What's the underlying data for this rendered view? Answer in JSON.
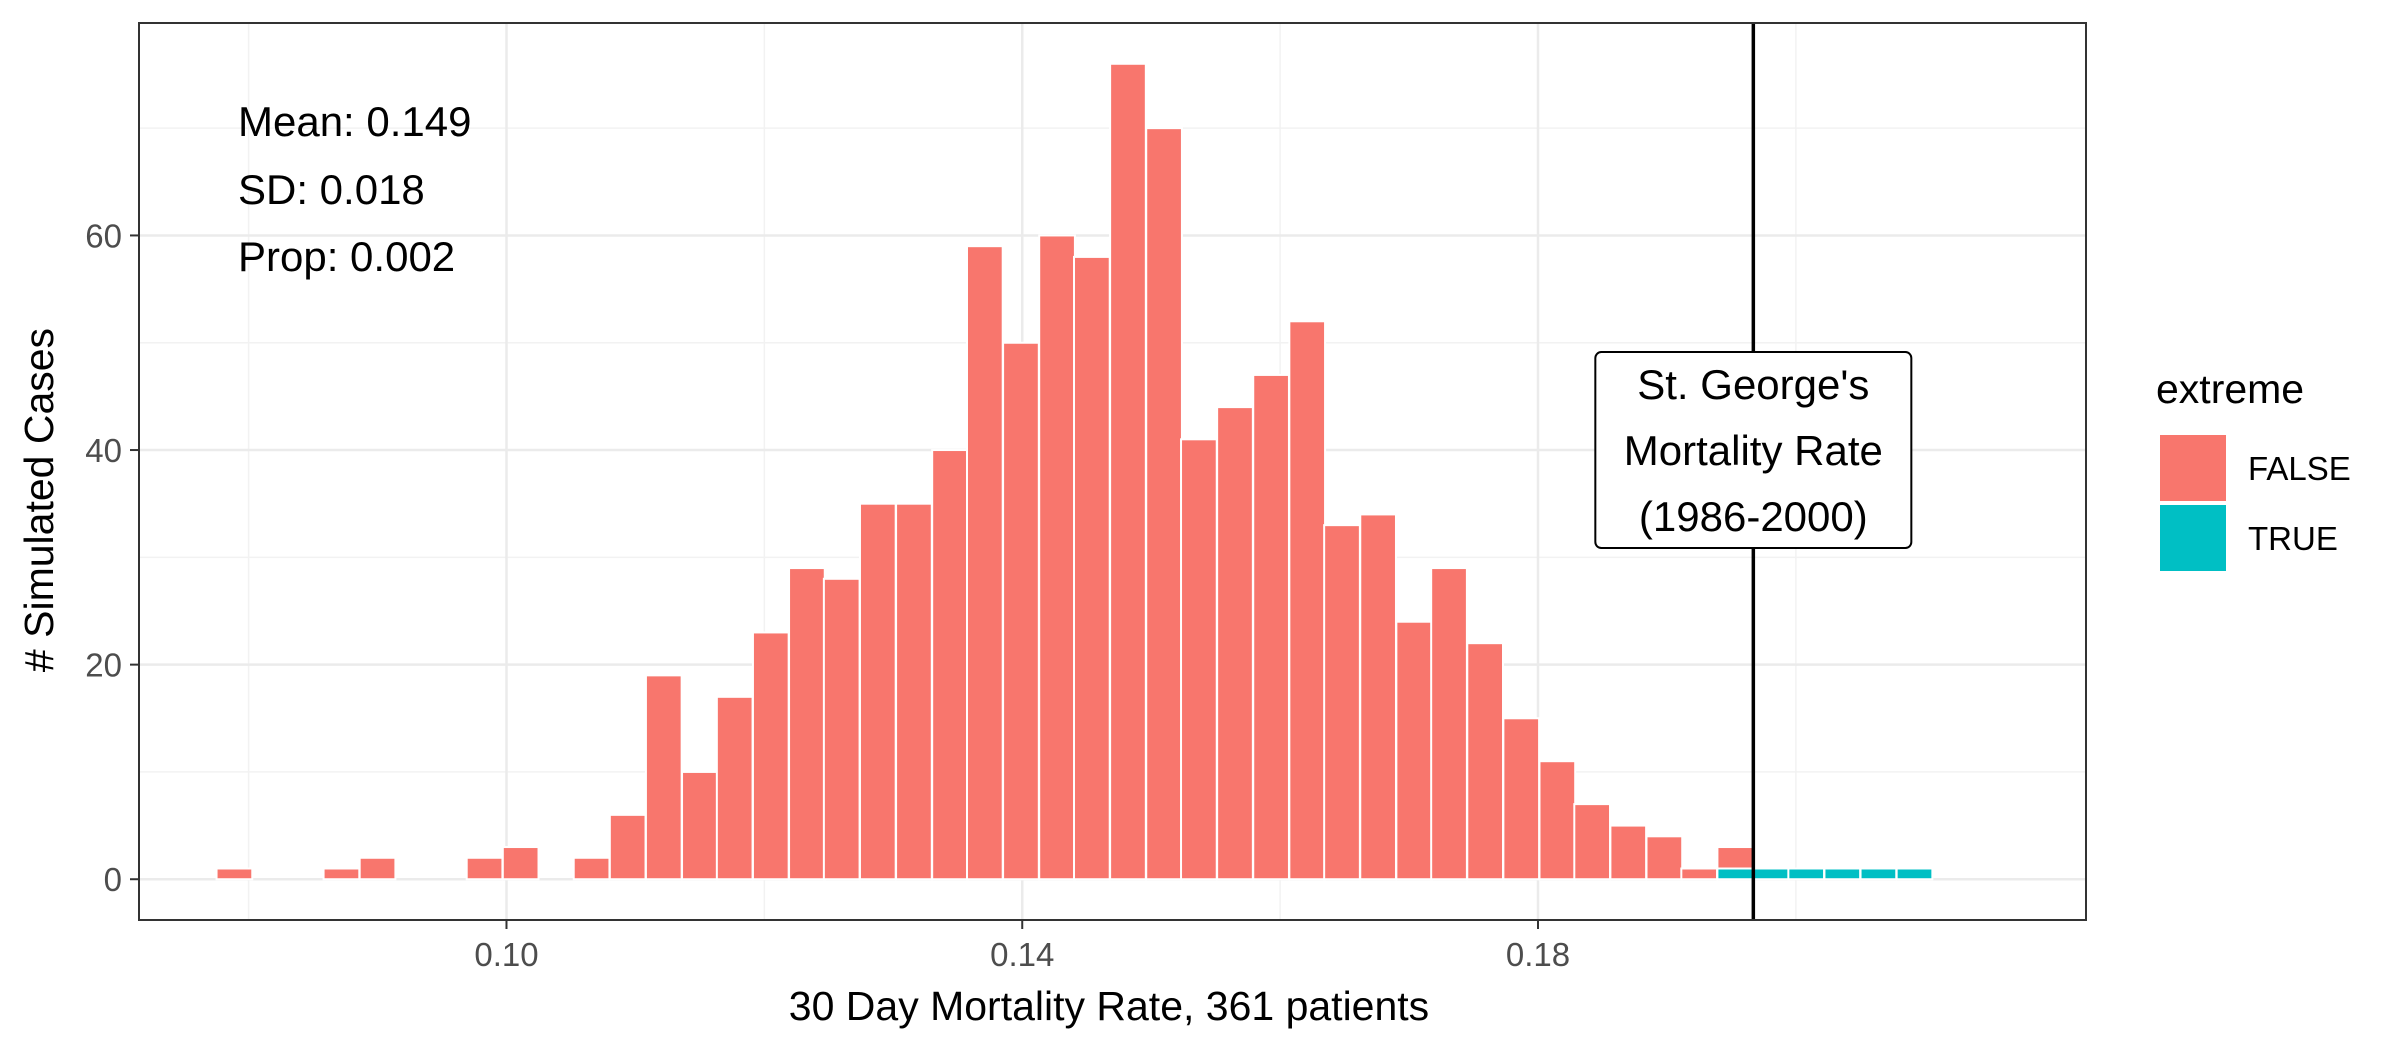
{
  "chart_data": {
    "type": "bar",
    "xlabel": "30 Day Mortality Rate, 361 patients",
    "ylabel": "# Simulated Cases",
    "xlim": [
      0.0715,
      0.2225
    ],
    "ylim": [
      -3.8,
      79.8
    ],
    "x_ticks": [
      {
        "value": 0.1,
        "label": "0.10"
      },
      {
        "value": 0.14,
        "label": "0.14"
      },
      {
        "value": 0.18,
        "label": "0.18"
      }
    ],
    "y_ticks": [
      {
        "value": 0,
        "label": "0"
      },
      {
        "value": 20,
        "label": "20"
      },
      {
        "value": 40,
        "label": "40"
      },
      {
        "value": 60,
        "label": "60"
      }
    ],
    "bin_width": 0.00277,
    "grid": true,
    "bins": [
      {
        "x": 0.0789,
        "count": 1,
        "extreme": "FALSE"
      },
      {
        "x": 0.0872,
        "count": 1,
        "extreme": "FALSE"
      },
      {
        "x": 0.09,
        "count": 2,
        "extreme": "FALSE"
      },
      {
        "x": 0.0983,
        "count": 2,
        "extreme": "FALSE"
      },
      {
        "x": 0.1011,
        "count": 3,
        "extreme": "FALSE"
      },
      {
        "x": 0.1066,
        "count": 2,
        "extreme": "FALSE"
      },
      {
        "x": 0.1094,
        "count": 6,
        "extreme": "FALSE"
      },
      {
        "x": 0.1122,
        "count": 19,
        "extreme": "FALSE"
      },
      {
        "x": 0.115,
        "count": 10,
        "extreme": "FALSE"
      },
      {
        "x": 0.1177,
        "count": 17,
        "extreme": "FALSE"
      },
      {
        "x": 0.1205,
        "count": 23,
        "extreme": "FALSE"
      },
      {
        "x": 0.1233,
        "count": 29,
        "extreme": "FALSE"
      },
      {
        "x": 0.126,
        "count": 28,
        "extreme": "FALSE"
      },
      {
        "x": 0.1288,
        "count": 35,
        "extreme": "FALSE"
      },
      {
        "x": 0.1316,
        "count": 35,
        "extreme": "FALSE"
      },
      {
        "x": 0.1344,
        "count": 40,
        "extreme": "FALSE"
      },
      {
        "x": 0.1371,
        "count": 59,
        "extreme": "FALSE"
      },
      {
        "x": 0.1399,
        "count": 50,
        "extreme": "FALSE"
      },
      {
        "x": 0.1427,
        "count": 60,
        "extreme": "FALSE"
      },
      {
        "x": 0.1454,
        "count": 58,
        "extreme": "FALSE"
      },
      {
        "x": 0.1482,
        "count": 76,
        "extreme": "FALSE"
      },
      {
        "x": 0.151,
        "count": 70,
        "extreme": "FALSE"
      },
      {
        "x": 0.1537,
        "count": 41,
        "extreme": "FALSE"
      },
      {
        "x": 0.1565,
        "count": 44,
        "extreme": "FALSE"
      },
      {
        "x": 0.1593,
        "count": 47,
        "extreme": "FALSE"
      },
      {
        "x": 0.1621,
        "count": 52,
        "extreme": "FALSE"
      },
      {
        "x": 0.1648,
        "count": 33,
        "extreme": "FALSE"
      },
      {
        "x": 0.1676,
        "count": 34,
        "extreme": "FALSE"
      },
      {
        "x": 0.1704,
        "count": 24,
        "extreme": "FALSE"
      },
      {
        "x": 0.1731,
        "count": 29,
        "extreme": "FALSE"
      },
      {
        "x": 0.1759,
        "count": 22,
        "extreme": "FALSE"
      },
      {
        "x": 0.1787,
        "count": 15,
        "extreme": "FALSE"
      },
      {
        "x": 0.1815,
        "count": 11,
        "extreme": "FALSE"
      },
      {
        "x": 0.1842,
        "count": 7,
        "extreme": "FALSE"
      },
      {
        "x": 0.187,
        "count": 5,
        "extreme": "FALSE"
      },
      {
        "x": 0.1898,
        "count": 4,
        "extreme": "FALSE"
      },
      {
        "x": 0.1925,
        "count": 1,
        "extreme": "FALSE"
      },
      {
        "x": 0.1953,
        "count": 3,
        "extreme": "FALSE"
      },
      {
        "x": 0.1953,
        "count": 1,
        "extreme": "TRUE"
      },
      {
        "x": 0.1981,
        "count": 1,
        "extreme": "TRUE"
      },
      {
        "x": 0.2008,
        "count": 1,
        "extreme": "TRUE"
      },
      {
        "x": 0.2036,
        "count": 1,
        "extreme": "TRUE"
      },
      {
        "x": 0.2064,
        "count": 1,
        "extreme": "TRUE"
      },
      {
        "x": 0.2092,
        "count": 1,
        "extreme": "TRUE"
      }
    ],
    "reference_line": {
      "x": 0.1967
    },
    "annotation": {
      "lines": [
        "St. George's",
        "Mortality Rate",
        "(1986-2000)"
      ],
      "x": 0.1967,
      "y": 40
    },
    "stats": [
      "Mean: 0.149",
      "SD: 0.018",
      "Prop: 0.002"
    ],
    "legend": {
      "title": "extreme",
      "placement": "right",
      "items": [
        {
          "label": "FALSE",
          "color": "#F8766D"
        },
        {
          "label": "TRUE",
          "color": "#00BFC4"
        }
      ]
    },
    "colors": {
      "FALSE": "#F8766D",
      "TRUE": "#00BFC4"
    }
  }
}
